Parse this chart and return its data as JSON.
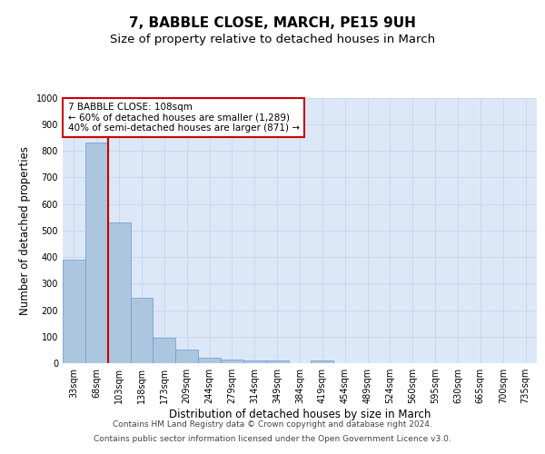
{
  "title": "7, BABBLE CLOSE, MARCH, PE15 9UH",
  "subtitle": "Size of property relative to detached houses in March",
  "xlabel": "Distribution of detached houses by size in March",
  "ylabel": "Number of detached properties",
  "categories": [
    "33sqm",
    "68sqm",
    "103sqm",
    "138sqm",
    "173sqm",
    "209sqm",
    "244sqm",
    "279sqm",
    "314sqm",
    "349sqm",
    "384sqm",
    "419sqm",
    "454sqm",
    "489sqm",
    "524sqm",
    "560sqm",
    "595sqm",
    "630sqm",
    "665sqm",
    "700sqm",
    "735sqm"
  ],
  "values": [
    390,
    830,
    530,
    245,
    95,
    52,
    22,
    15,
    11,
    10,
    0,
    10,
    0,
    0,
    0,
    0,
    0,
    0,
    0,
    0,
    0
  ],
  "bar_color": "#adc6e0",
  "bar_edge_color": "#6699cc",
  "highlight_color": "#cc0000",
  "annotation_text": "7 BABBLE CLOSE: 108sqm\n← 60% of detached houses are smaller (1,289)\n40% of semi-detached houses are larger (871) →",
  "annotation_box_color": "#cc0000",
  "ylim": [
    0,
    1000
  ],
  "yticks": [
    0,
    100,
    200,
    300,
    400,
    500,
    600,
    700,
    800,
    900,
    1000
  ],
  "grid_color": "#c8d4e8",
  "bg_color": "#dce8f8",
  "footer_line1": "Contains HM Land Registry data © Crown copyright and database right 2024.",
  "footer_line2": "Contains public sector information licensed under the Open Government Licence v3.0.",
  "title_fontsize": 11,
  "subtitle_fontsize": 9.5,
  "label_fontsize": 8.5,
  "tick_fontsize": 7,
  "ann_fontsize": 7.5,
  "footer_fontsize": 6.5
}
